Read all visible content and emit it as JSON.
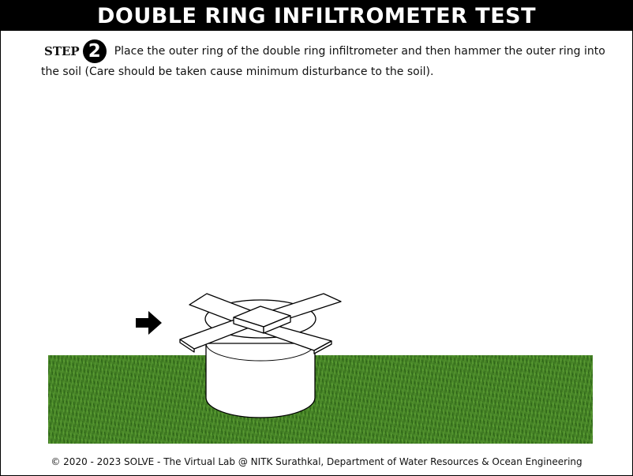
{
  "header": {
    "title": "DOUBLE RING INFILTROMETER TEST"
  },
  "step": {
    "label": "STEP",
    "number": "2",
    "text": "Place the outer ring of the double ring infiltrometer and then hammer the outer ring into the soil (Care should be taken cause minimum disturbance to the soil)."
  },
  "scene": {
    "grass_color": "#3f7a22",
    "arrow_icon": "right-arrow-icon"
  },
  "footer": {
    "text": "© 2020 - 2023 SOLVE - The Virtual Lab @ NITK Surathkal, Department of Water Resources & Ocean Engineering"
  }
}
